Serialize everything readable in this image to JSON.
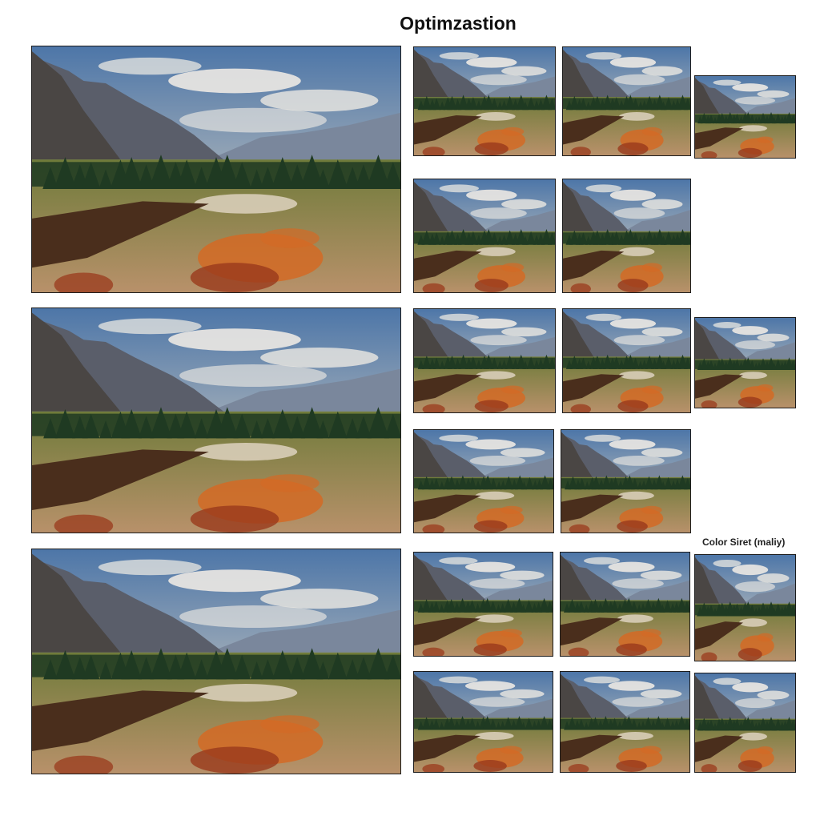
{
  "page": {
    "title": "Optimzastion",
    "caption": "Color Siret (maliy)"
  },
  "scene": {
    "description_icon": "mountain-valley-landscape",
    "colors": {
      "sky_top": "#4d76a8",
      "sky_bottom": "#e9dcc6",
      "cloud": "#f4efe6",
      "mountain_far": "#7a879c",
      "mountain_near": "#5a5e6a",
      "cliff": "#4a4644",
      "forest": "#1f3a22",
      "meadow": "#6f7b3a",
      "water": "#4a2e1c",
      "water_shine": "#d8cdb8",
      "ground": "#b8916a",
      "foliage_orange": "#d36a25",
      "foliage_red": "#9a3a1c"
    }
  }
}
